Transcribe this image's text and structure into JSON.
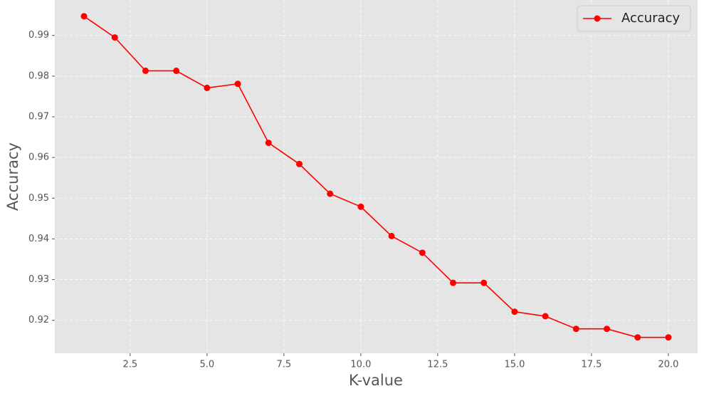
{
  "chart_data": {
    "type": "line",
    "xlabel": "K-value",
    "ylabel": "Accuracy",
    "x": [
      1,
      2,
      3,
      4,
      5,
      6,
      7,
      8,
      9,
      10,
      11,
      12,
      13,
      14,
      15,
      16,
      17,
      18,
      19,
      20
    ],
    "series": [
      {
        "name": "Accuracy",
        "color": "#ff0000",
        "values": [
          0.9947,
          0.9895,
          0.9813,
          0.9813,
          0.9771,
          0.9781,
          0.9636,
          0.9584,
          0.9511,
          0.9479,
          0.9407,
          0.9366,
          0.9292,
          0.9292,
          0.9221,
          0.921,
          0.9179,
          0.9179,
          0.9158,
          0.9158
        ]
      }
    ],
    "xlim": [
      0.05,
      20.95
    ],
    "ylim": [
      0.9119,
      0.9987
    ],
    "xticks": [
      2.5,
      {
        "value": 5,
        "label": "5.0"
      },
      7.5,
      {
        "value": 10,
        "label": "10.0"
      },
      12.5,
      {
        "value": 15,
        "label": "15.0"
      },
      17.5,
      {
        "value": 20,
        "label": "20.0"
      }
    ],
    "yticks": [
      0.92,
      0.93,
      0.94,
      0.95,
      0.96,
      0.97,
      0.98,
      0.99
    ],
    "grid": true,
    "legend": "upper right"
  }
}
